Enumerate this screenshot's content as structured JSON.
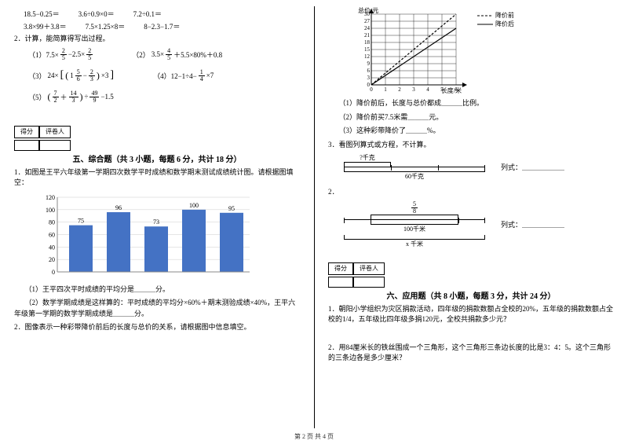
{
  "left": {
    "calc_row1": [
      "18.5−0.25＝",
      "3.6÷0.9×0＝",
      "7.2÷0.1＝"
    ],
    "calc_row2": [
      "3.8×99＋3.8＝",
      "7.5×1.25×8＝",
      "8−2.3−1.7＝"
    ],
    "q2": "2．计算，能简算得写出过程。",
    "eq1_label": "（1）7.5×",
    "eq1_mid": " −2.5× ",
    "eq2_pre": "3.5×",
    "eq2_post": "＋5.5×80%＋0.8",
    "eq2_label": "（2）",
    "eq3_label": "（3）",
    "eq3_pre": "24×",
    "eq3_inner1": "1",
    "eq3_inner2": "×3",
    "eq4": "（4）12−1÷4−",
    "eq4_post": "×7",
    "eq5_label": "（5）",
    "eq5_mid": "÷",
    "eq5_post": "−1.5",
    "score_label1": "得分",
    "score_label2": "评卷人",
    "section5": "五、综合题（共 3 小题，每题 6 分，共计 18 分）",
    "q5_1": "1．如图是王平六年级第一学期四次数学平时成绩和数学期末测试成绩统计图。请根据图填空：",
    "chart": {
      "ymax": 120,
      "ystep": 20,
      "bars": [
        {
          "label": "",
          "value": 75,
          "color": "#4472c4"
        },
        {
          "label": "",
          "value": 96,
          "color": "#4472c4"
        },
        {
          "label": "",
          "value": 73,
          "color": "#4472c4"
        },
        {
          "label": "",
          "value": 100,
          "color": "#4472c4"
        },
        {
          "label": "",
          "value": 95,
          "color": "#4472c4"
        }
      ],
      "yticks": [
        "0",
        "20",
        "40",
        "60",
        "80",
        "100",
        "120"
      ]
    },
    "q5_1a": "（1）王平四次平时成绩的平均分是＿＿＿分。",
    "q5_1b": "（2）数学学期成绩是这样算的：平时成绩的平均分×60%＋期末测验成绩×40%，王平六年级第一学期的数学学期成绩是＿＿＿分。",
    "q5_2": "2．图像表示一种彩带降价前后的长度与总价的关系，请根据图中信息填空。"
  },
  "right": {
    "legend_before": "降价前",
    "legend_after": "降价后",
    "ylabel": "总价/元",
    "xlabel": "长度/米",
    "linechart": {
      "yticks": [
        "0",
        "3",
        "6",
        "9",
        "12",
        "15",
        "18",
        "21",
        "24",
        "27",
        "30"
      ],
      "xticks": [
        "0",
        "1",
        "2",
        "3",
        "4",
        "5",
        "6"
      ],
      "grid_color": "#000",
      "line1_color": "#000",
      "line2_color": "#000"
    },
    "r1": "（1）降价前后，长度与总价都成＿＿＿比例。",
    "r2": "（2）降价前买7.5米需＿＿＿元。",
    "r3": "（3）这种彩带降价了＿＿＿%。",
    "q3": "3．看图列算式或方程，不计算。",
    "diag1_top": "?千克",
    "diag1_bot": "60千克",
    "diag1_eq": "列式：＿＿＿＿＿＿",
    "q3_2": "2．",
    "diag2_top_frac_n": "5",
    "diag2_top_frac_d": "8",
    "diag2_mid": "100千米",
    "diag2_bot": "x 千米",
    "diag2_eq": "列式：＿＿＿＿＿＿",
    "score_label1": "得分",
    "score_label2": "评卷人",
    "section6": "六、应用题（共 8 小题，每题 3 分，共计 24 分）",
    "q6_1": "1．朝阳小学组织为灾区捐款活动，四年级的捐款数额占全校的20%，五年级的捐款数额占全校的1/4，五年级比四年级多捐120元，全校共捐款多少元？",
    "q6_2": "2．用84厘米长的铁丝围成一个三角形，这个三角形三条边长度的比是3：4：5。这个三角形的三条边各是多少厘米？"
  },
  "footer": "第 2 页 共 4 页"
}
